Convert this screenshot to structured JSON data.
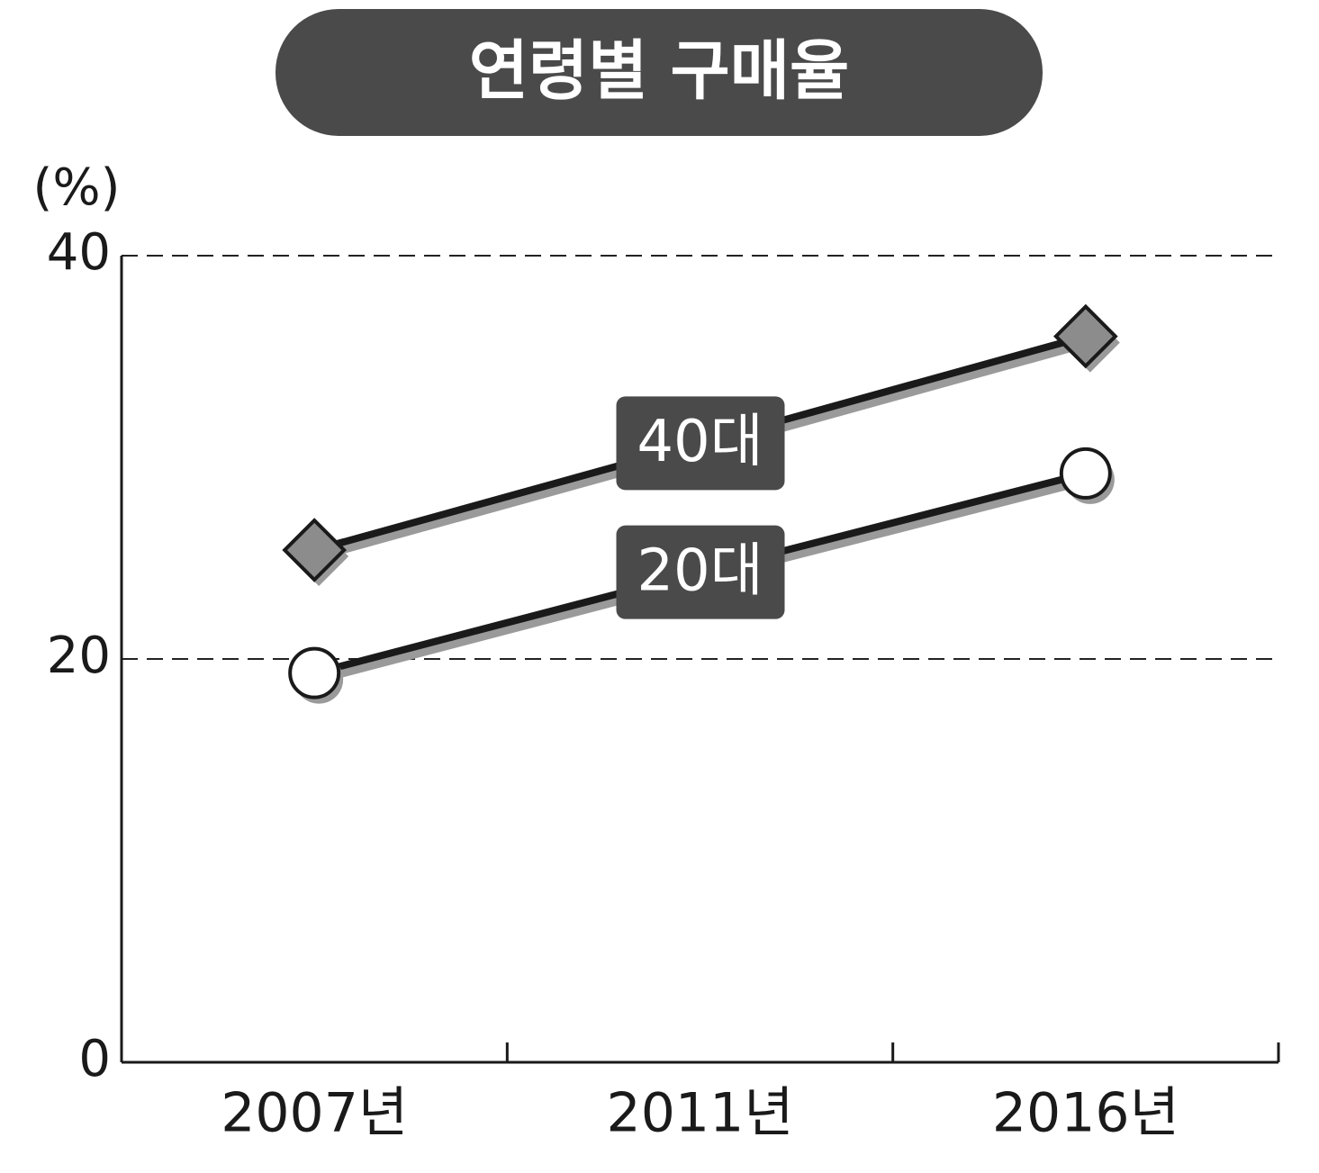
{
  "chart_data": {
    "type": "line",
    "title": "연령별 구매율",
    "y_label": "(%)",
    "categories": [
      "2007년",
      "2011년",
      "2016년"
    ],
    "series": [
      {
        "name": "40대",
        "color": "#8c8c8c",
        "marker": "diamond",
        "values": [
          25.4,
          30.7,
          36.0
        ]
      },
      {
        "name": "20대",
        "color": "#ffffff",
        "marker": "circle",
        "values": [
          19.3,
          24.3,
          29.2
        ]
      }
    ],
    "markers": "ends",
    "ylim": [
      0,
      40
    ],
    "yticks": [
      0,
      20,
      40
    ],
    "grid": true
  }
}
